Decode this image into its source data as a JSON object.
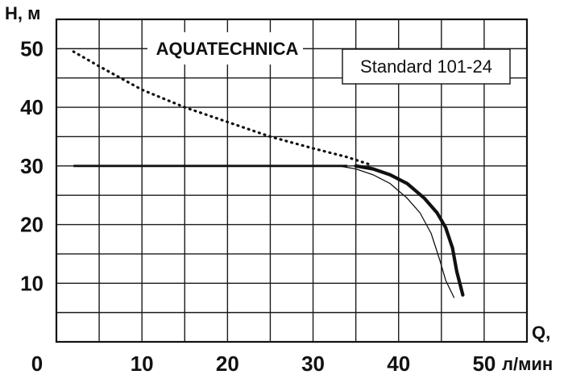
{
  "chart_data": {
    "type": "line",
    "brand": "AQUATECHNICA",
    "model": "Standard 101-24",
    "ylabel": "H, м",
    "xlabel_top": "Q,",
    "xlabel_bottom": "л/мин",
    "origin_label": "0",
    "xlim": [
      0,
      55
    ],
    "ylim": [
      0,
      55
    ],
    "x_ticks": [
      "10",
      "20",
      "30",
      "40",
      "50"
    ],
    "y_ticks": [
      "10",
      "20",
      "30",
      "40",
      "50"
    ],
    "grid": true,
    "series": [
      {
        "style": "dotted",
        "color": "#111111",
        "x": [
          2,
          5,
          10,
          15,
          20,
          25,
          30,
          34,
          36.5
        ],
        "y": [
          49.5,
          47,
          43,
          40,
          37.5,
          35,
          33,
          31.5,
          30.3
        ]
      },
      {
        "style": "flat",
        "color": "#111111",
        "x": [
          2,
          34
        ],
        "y": [
          30,
          30
        ]
      },
      {
        "style": "thick",
        "color": "#111111",
        "x": [
          35,
          37,
          39,
          41,
          43,
          44.5,
          45.5,
          46.3,
          46.8,
          47.5
        ],
        "y": [
          30,
          29.5,
          28.5,
          27,
          24.5,
          22,
          19.5,
          16,
          12,
          8
        ]
      },
      {
        "style": "thin",
        "color": "#111111",
        "x": [
          33,
          35,
          37,
          39,
          41,
          42.5,
          43.8,
          44.8,
          45.5,
          46.5
        ],
        "y": [
          30,
          29.5,
          28.5,
          27,
          24.5,
          22,
          18.5,
          14,
          10.5,
          7.5
        ]
      }
    ]
  }
}
